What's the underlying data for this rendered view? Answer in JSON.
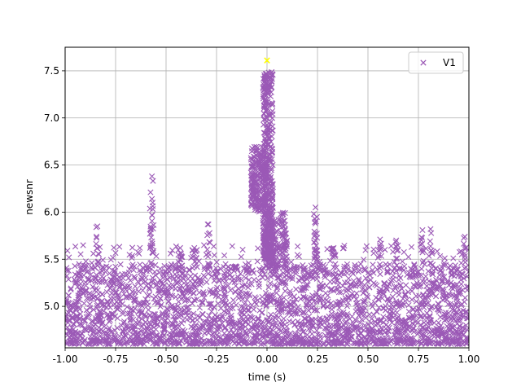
{
  "chart_data": {
    "type": "scatter",
    "marker": "x",
    "xlabel": "time (s)",
    "ylabel": "newsnr",
    "xlim": [
      -1.0,
      1.0
    ],
    "ylim": [
      4.56,
      7.75
    ],
    "x_ticks": [
      "-1.00",
      "-0.75",
      "-0.50",
      "-0.25",
      "0.00",
      "0.25",
      "0.50",
      "0.75",
      "1.00"
    ],
    "y_ticks": [
      "5.0",
      "5.5",
      "6.0",
      "6.5",
      "7.0",
      "7.5"
    ],
    "grid": true,
    "legend_position": "top-right",
    "series": [
      {
        "name": "V1",
        "color": "#9b59b6",
        "density_profile": {
          "dense_band": [
            4.6,
            5.45
          ],
          "central_peak": {
            "x_range": [
              -0.02,
              0.03
            ],
            "y_range": [
              5.5,
              7.5
            ]
          },
          "central_plateau": {
            "x_range": [
              -0.08,
              0.0
            ],
            "y_range": [
              6.0,
              6.7
            ]
          },
          "isolated_peaks": [
            {
              "x": -0.84,
              "y": 5.85
            },
            {
              "x": -0.57,
              "y": 6.38
            },
            {
              "x": -0.57,
              "y": 6.14
            },
            {
              "x": -0.57,
              "y": 5.97
            },
            {
              "x": -0.29,
              "y": 5.87
            },
            {
              "x": 0.24,
              "y": 6.05
            },
            {
              "x": 0.24,
              "y": 5.88
            },
            {
              "x": 0.24,
              "y": 5.78
            },
            {
              "x": 0.56,
              "y": 5.71
            },
            {
              "x": 0.64,
              "y": 5.7
            },
            {
              "x": 0.81,
              "y": 5.82
            },
            {
              "x": 0.77,
              "y": 5.81
            },
            {
              "x": 0.98,
              "y": 5.74
            },
            {
              "x": -0.16,
              "y": 5.42
            },
            {
              "x": 0.33,
              "y": 5.62
            },
            {
              "x": -0.43,
              "y": 5.62
            },
            {
              "x": -0.36,
              "y": 5.62
            }
          ]
        }
      }
    ],
    "highlight": {
      "x": 0.0,
      "y": 7.61,
      "color": "#ffff00"
    }
  }
}
